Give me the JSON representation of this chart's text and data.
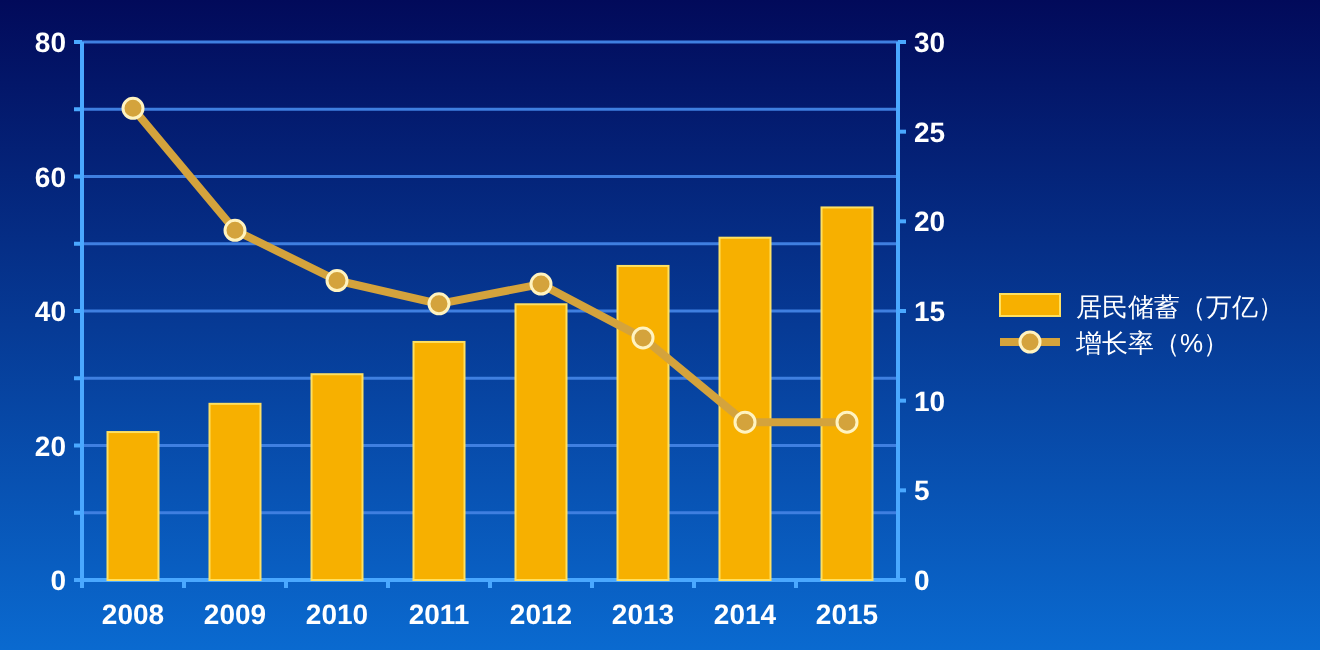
{
  "chart_data": {
    "type": "bar",
    "categories": [
      "2008",
      "2009",
      "2010",
      "2011",
      "2012",
      "2013",
      "2014",
      "2015"
    ],
    "series": [
      {
        "name": "居民储蓄（万亿）",
        "color": "#f7b000",
        "values": [
          22,
          26.2,
          30.6,
          35.4,
          41,
          46.7,
          50.9,
          55.4
        ]
      },
      {
        "name": "增长率（%）",
        "type": "line",
        "axis": "y2",
        "color": "#d4a33c",
        "marker": "circle",
        "values": [
          26.3,
          19.5,
          16.7,
          15.4,
          16.5,
          13.5,
          8.8,
          8.8
        ]
      }
    ],
    "ylim": [
      0,
      80
    ],
    "yticks": [
      0,
      {
        "value": 10,
        "label": null
      },
      20,
      {
        "value": 30,
        "label": null
      },
      40,
      {
        "value": 50,
        "label": null
      },
      60,
      {
        "value": 70,
        "label": null
      },
      80
    ],
    "y2lim": [
      0,
      30
    ],
    "y2ticks": [
      0,
      5,
      10,
      15,
      20,
      25,
      30
    ],
    "grid": "y",
    "legend": "right"
  }
}
